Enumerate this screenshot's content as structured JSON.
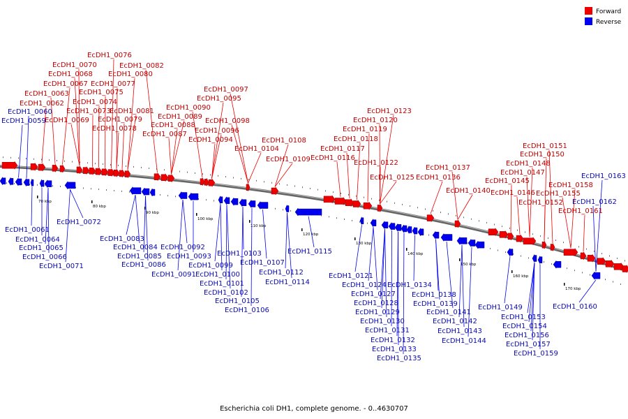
{
  "legend": [
    {
      "label": "Forward",
      "color": "#ee0000"
    },
    {
      "label": "Reverse",
      "color": "#0000ee"
    }
  ],
  "caption": "Escherichia coli DH1, complete genome. - 0..4630707",
  "scale_ticks": [
    "70 kbp",
    "80 kbp",
    "90 kbp",
    "100 kbp",
    "110 kbp",
    "120 kbp",
    "130 kbp",
    "140 kbp",
    "150 kbp",
    "160 kbp",
    "170 kbp"
  ],
  "forward_genes": [
    "EcDH1_0062",
    "EcDH1_0063",
    "EcDH1_0067",
    "EcDH1_0068",
    "EcDH1_0069",
    "EcDH1_0070",
    "EcDH1_0073",
    "EcDH1_0074",
    "EcDH1_0075",
    "EcDH1_0076",
    "EcDH1_0077",
    "EcDH1_0078",
    "EcDH1_0079",
    "EcDH1_0080",
    "EcDH1_0081",
    "EcDH1_0082",
    "EcDH1_0087",
    "EcDH1_0088",
    "EcDH1_0089",
    "EcDH1_0090",
    "EcDH1_0094",
    "EcDH1_0095",
    "EcDH1_0096",
    "EcDH1_0097",
    "EcDH1_0098",
    "EcDH1_0104",
    "EcDH1_0108",
    "EcDH1_0109",
    "EcDH1_0116",
    "EcDH1_0117",
    "EcDH1_0118",
    "EcDH1_0119",
    "EcDH1_0120",
    "EcDH1_0122",
    "EcDH1_0123",
    "EcDH1_0125",
    "EcDH1_0136",
    "EcDH1_0137",
    "EcDH1_0140",
    "EcDH1_0145",
    "EcDH1_0146",
    "EcDH1_0147",
    "EcDH1_0148",
    "EcDH1_0150",
    "EcDH1_0151",
    "EcDH1_0152",
    "EcDH1_0155",
    "EcDH1_0158",
    "EcDH1_0161"
  ],
  "reverse_genes": [
    "EcDH1_0059",
    "EcDH1_0060",
    "EcDH1_0061",
    "EcDH1_0064",
    "EcDH1_0065",
    "EcDH1_0066",
    "EcDH1_0071",
    "EcDH1_0072",
    "EcDH1_0083",
    "EcDH1_0084",
    "EcDH1_0085",
    "EcDH1_0086",
    "EcDH1_0091",
    "EcDH1_0092",
    "EcDH1_0093",
    "EcDH1_0099",
    "EcDH1_0100",
    "EcDH1_0101",
    "EcDH1_0102",
    "EcDH1_0103",
    "EcDH1_0105",
    "EcDH1_0106",
    "EcDH1_0107",
    "EcDH1_0112",
    "EcDH1_0114",
    "EcDH1_0115",
    "EcDH1_0121",
    "EcDH1_0124",
    "EcDH1_0127",
    "EcDH1_0128",
    "EcDH1_0129",
    "EcDH1_0130",
    "EcDH1_0131",
    "EcDH1_0132",
    "EcDH1_0133",
    "EcDH1_0134",
    "EcDH1_0135",
    "EcDH1_0138",
    "EcDH1_0139",
    "EcDH1_0141",
    "EcDH1_0142",
    "EcDH1_0143",
    "EcDH1_0144",
    "EcDH1_0149",
    "EcDH1_0153",
    "EcDH1_0154",
    "EcDH1_0156",
    "EcDH1_0157",
    "EcDH1_0159",
    "EcDH1_0160",
    "EcDH1_0162",
    "EcDH1_0163"
  ]
}
